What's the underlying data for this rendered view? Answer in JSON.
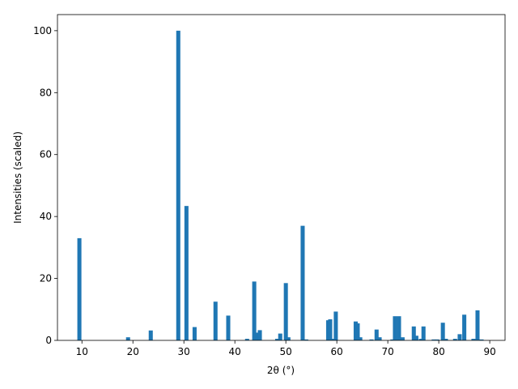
{
  "chart_data": {
    "type": "bar",
    "xlabel": "2θ (°)",
    "ylabel": "Intensities (scaled)",
    "color": "#1f77b4",
    "x": [
      9.5,
      19.05,
      23.5,
      28.9,
      30.5,
      32.1,
      36.2,
      38.7,
      42.4,
      43.8,
      44.4,
      44.9,
      48.3,
      48.9,
      50.0,
      50.5,
      53.3,
      54.0,
      58.3,
      58.7,
      59.2,
      59.8,
      63.7,
      64.1,
      64.6,
      66.8,
      67.8,
      68.4,
      70.9,
      71.4,
      72.2,
      72.9,
      75.1,
      75.6,
      76.5,
      77.0,
      79.0,
      79.7,
      80.8,
      81.4,
      83.2,
      84.1,
      85.0,
      86.8,
      87.6,
      88.4
    ],
    "values": [
      33,
      1,
      3.2,
      100,
      43.4,
      4.3,
      12.5,
      8,
      0.5,
      19,
      2.5,
      3.3,
      0.5,
      2.2,
      18.5,
      1,
      37,
      0.3,
      6.5,
      6.8,
      0.5,
      9.3,
      6.1,
      5.5,
      1,
      0.3,
      3.5,
      1,
      0.3,
      7.8,
      7.8,
      1,
      4.5,
      1.5,
      0.5,
      4.5,
      0.3,
      0.3,
      5.7,
      0.5,
      0.5,
      2,
      8.3,
      0.5,
      9.7,
      0.3
    ],
    "xlim": [
      5.2,
      93.0
    ],
    "ylim": [
      0,
      105.2
    ],
    "xticks": [
      10,
      20,
      30,
      40,
      50,
      60,
      70,
      80,
      90
    ],
    "yticks": [
      0,
      20,
      40,
      60,
      80,
      100
    ]
  }
}
